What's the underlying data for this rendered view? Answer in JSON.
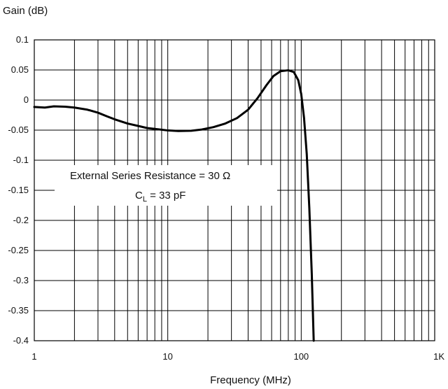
{
  "chart_data": {
    "type": "line",
    "ylabel": "Gain (dB)",
    "xlabel": "Frequency (MHz)",
    "x_scale": "log",
    "xlim": [
      1,
      1000
    ],
    "ylim": [
      -0.4,
      0.1
    ],
    "grid": true,
    "x_ticks": [
      {
        "value": 1,
        "label": "1"
      },
      {
        "value": 10,
        "label": "10"
      },
      {
        "value": 100,
        "label": "100"
      },
      {
        "value": 1000,
        "label": "1K"
      }
    ],
    "y_ticks": [
      {
        "value": 0.1,
        "label": "0.1"
      },
      {
        "value": 0.05,
        "label": "0.05"
      },
      {
        "value": 0,
        "label": "0"
      },
      {
        "value": -0.05,
        "label": "-0.05"
      },
      {
        "value": -0.1,
        "label": "-0.1"
      },
      {
        "value": -0.15,
        "label": "-0.15"
      },
      {
        "value": -0.2,
        "label": "-0.2"
      },
      {
        "value": -0.25,
        "label": "-0.25"
      },
      {
        "value": -0.3,
        "label": "-0.3"
      },
      {
        "value": -0.35,
        "label": "-0.35"
      },
      {
        "value": -0.4,
        "label": "-0.4"
      }
    ],
    "annotation": {
      "line1": "External Series Resistance  =  30 Ω",
      "line2_main": "C",
      "line2_sub": "L",
      "line2_rest": "  =  33 pF"
    },
    "series": [
      {
        "points": [
          [
            1.0,
            -0.0115
          ],
          [
            1.2,
            -0.0125
          ],
          [
            1.4,
            -0.0105
          ],
          [
            1.7,
            -0.011
          ],
          [
            2.0,
            -0.0125
          ],
          [
            2.5,
            -0.016
          ],
          [
            3.0,
            -0.021
          ],
          [
            3.5,
            -0.027
          ],
          [
            4.0,
            -0.032
          ],
          [
            5.0,
            -0.039
          ],
          [
            6.0,
            -0.043
          ],
          [
            7.0,
            -0.0465
          ],
          [
            8.0,
            -0.048
          ],
          [
            10.0,
            -0.0505
          ],
          [
            12.0,
            -0.0515
          ],
          [
            15.0,
            -0.051
          ],
          [
            18.0,
            -0.049
          ],
          [
            22.0,
            -0.045
          ],
          [
            27.0,
            -0.039
          ],
          [
            33.0,
            -0.03
          ],
          [
            40.0,
            -0.016
          ],
          [
            47.0,
            0.003
          ],
          [
            55.0,
            0.025
          ],
          [
            62.0,
            0.04
          ],
          [
            70.0,
            0.048
          ],
          [
            80.0,
            0.0495
          ],
          [
            88.0,
            0.0465
          ],
          [
            95.0,
            0.033
          ],
          [
            100.0,
            0.01
          ],
          [
            105.0,
            -0.03
          ],
          [
            110.0,
            -0.09
          ],
          [
            115.0,
            -0.18
          ],
          [
            120.0,
            -0.29
          ],
          [
            124.0,
            -0.4
          ]
        ]
      }
    ]
  }
}
